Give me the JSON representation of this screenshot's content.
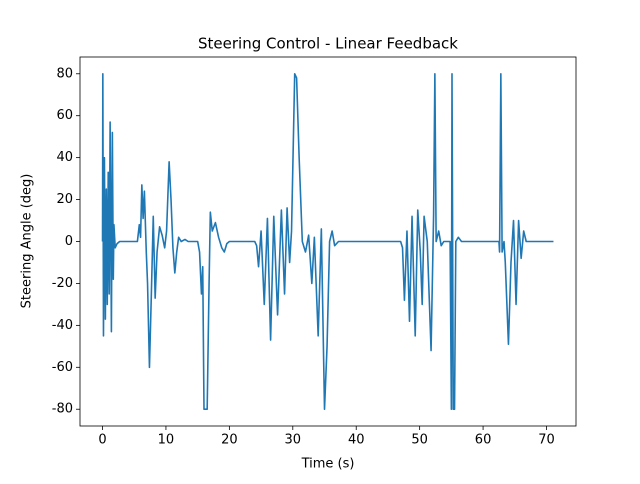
{
  "chart_data": {
    "type": "line",
    "title": "Steering Control - Linear Feedback",
    "x_label": "Time (s)",
    "y_label": "Steering Angle (deg)",
    "color": "#1f77b4",
    "x": [
      0,
      0.05,
      0.15,
      0.3,
      0.45,
      0.6,
      0.75,
      0.9,
      1.05,
      1.2,
      1.4,
      1.55,
      1.7,
      1.8,
      2.0,
      2.3,
      2.7,
      3.5,
      5.5,
      5.8,
      6.0,
      6.2,
      6.4,
      6.6,
      6.9,
      7.1,
      7.4,
      7.7,
      8.0,
      8.3,
      8.6,
      9.0,
      9.4,
      9.8,
      10.1,
      10.5,
      10.8,
      11.1,
      11.4,
      11.7,
      12.0,
      12.4,
      13,
      13.5,
      15.0,
      15.3,
      15.6,
      15.8,
      16.0,
      16.5,
      16.8,
      17.0,
      17.3,
      17.8,
      18.3,
      18.8,
      19.2,
      19.6,
      20,
      24,
      24.3,
      24.6,
      25.0,
      25.5,
      26.0,
      26.5,
      27.0,
      27.6,
      28.2,
      28.7,
      29.1,
      29.5,
      29.8,
      30.0,
      30.3,
      30.6,
      31.0,
      31.5,
      32.0,
      32.5,
      33.0,
      33.4,
      34.0,
      34.5,
      35.0,
      35.4,
      35.8,
      36.2,
      36.6,
      37.2,
      47,
      47.3,
      47.6,
      48.0,
      48.4,
      48.8,
      49.3,
      49.7,
      50.1,
      50.4,
      50.7,
      51.2,
      51.8,
      52.2,
      52.4,
      52.6,
      53.0,
      53.4,
      53.8,
      54.8,
      55.0,
      55.1,
      55.3,
      55.5,
      55.7,
      56.1,
      56.6,
      62.5,
      62.6,
      62.8,
      63.0,
      63.3,
      63.5,
      64.0,
      64.4,
      64.8,
      65.2,
      65.6,
      66.0,
      66.4,
      66.8,
      67.5,
      71.1
    ],
    "values": [
      0,
      80,
      -45,
      40,
      -37,
      25,
      -30,
      33,
      -25,
      57,
      -43,
      52,
      -18,
      8,
      -3,
      -1,
      0,
      0,
      0,
      8,
      2,
      27,
      11,
      24,
      -5,
      -20,
      -60,
      -25,
      12,
      -27,
      -5,
      7,
      3,
      -3,
      5,
      38,
      20,
      -3,
      -15,
      -5,
      2,
      0,
      1,
      0,
      0,
      -5,
      -25,
      -12,
      -80,
      -80,
      -20,
      14,
      5,
      9,
      2,
      -3,
      -5,
      -1,
      0,
      0,
      -2,
      -12,
      5,
      -30,
      11,
      -47,
      12,
      -35,
      15,
      -25,
      16,
      -10,
      5,
      35,
      80,
      78,
      40,
      0,
      -5,
      3,
      -20,
      2,
      -45,
      6,
      -80,
      -50,
      0,
      5,
      -2,
      0,
      0,
      -3,
      -28,
      5,
      -38,
      12,
      -45,
      15,
      -5,
      -30,
      12,
      0,
      -52,
      13,
      80,
      0,
      5,
      -2,
      0,
      0,
      -80,
      80,
      -80,
      -80,
      0,
      2,
      0,
      0,
      -5,
      80,
      -5,
      0,
      -10,
      -49,
      -10,
      10,
      -30,
      10,
      -8,
      5,
      0,
      0,
      0
    ],
    "xlim": [
      -3.55,
      74.65
    ],
    "ylim": [
      -88,
      88
    ],
    "xticks": [
      0,
      10,
      20,
      30,
      40,
      50,
      60,
      70
    ],
    "yticks": [
      -80,
      -60,
      -40,
      -20,
      0,
      20,
      40,
      60,
      80
    ]
  }
}
